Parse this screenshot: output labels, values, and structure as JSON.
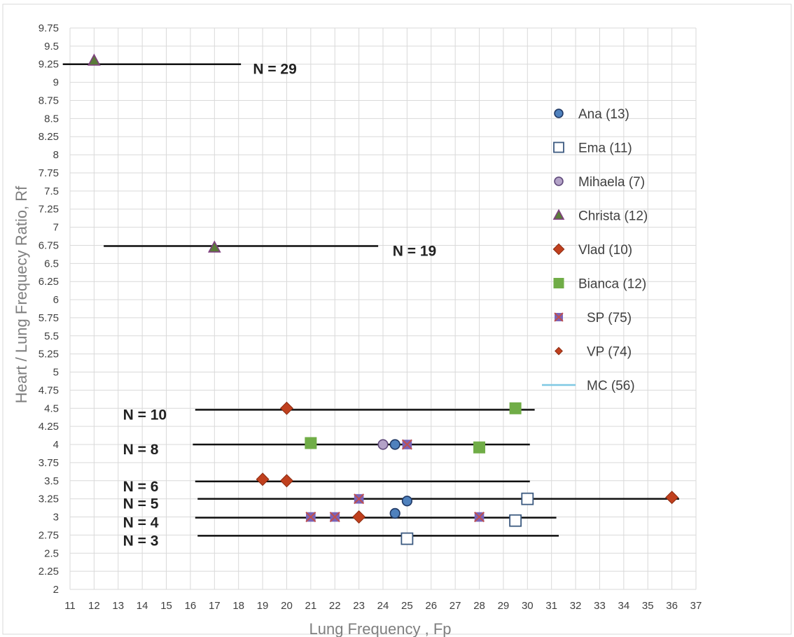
{
  "chart_data": {
    "type": "scatter",
    "title": "",
    "xlabel": "Lung Frequency , Fp",
    "ylabel": "Heart / Lung Frequecy Ratio, Rf",
    "xlim": [
      11,
      37
    ],
    "ylim": [
      2,
      9.75
    ],
    "x_ticks": [
      "11",
      "12",
      "13",
      "14",
      "15",
      "16",
      "17",
      "18",
      "19",
      "20",
      "21",
      "22",
      "23",
      "24",
      "25",
      "26",
      "27",
      "28",
      "29",
      "30",
      "31",
      "32",
      "33",
      "34",
      "35",
      "36",
      "37"
    ],
    "y_ticks": [
      "2",
      "2.25",
      "2.5",
      "2.75",
      "3",
      "3.25",
      "3.5",
      "3.75",
      "4",
      "4.25",
      "4.5",
      "4.75",
      "5",
      "5.25",
      "5.5",
      "5.75",
      "6",
      "6.25",
      "6.5",
      "6.75",
      "7",
      "7.25",
      "7.5",
      "7.75",
      "8",
      "8.25",
      "8.5",
      "8.75",
      "9",
      "9.25",
      "9.5",
      "9.75"
    ],
    "grid": true,
    "legend_position": "right",
    "series": [
      {
        "name": "Ana (13)",
        "marker": "circle",
        "color": "#4f81bd",
        "stroke": "#1f3864",
        "points": [
          [
            24.5,
            4.0
          ],
          [
            25.0,
            3.22
          ],
          [
            24.5,
            3.05
          ]
        ]
      },
      {
        "name": "Ema (11)",
        "marker": "square-open",
        "color": "#ffffff",
        "stroke": "#3c5a80",
        "points": [
          [
            30.0,
            3.25
          ],
          [
            29.5,
            2.95
          ],
          [
            25.0,
            2.7
          ]
        ]
      },
      {
        "name": "Mihaela (7)",
        "marker": "circle",
        "color": "#b3a2c7",
        "stroke": "#604a7b",
        "points": [
          [
            24.0,
            4.0
          ]
        ]
      },
      {
        "name": "Christa (12)",
        "marker": "triangle",
        "color": "#5b7b3a",
        "stroke": "#7f3f7f",
        "points": [
          [
            12.0,
            9.3
          ],
          [
            17.0,
            6.72
          ]
        ]
      },
      {
        "name": "Vlad (10)",
        "marker": "diamond",
        "color": "#c0401e",
        "stroke": "#8a2a10",
        "points": [
          [
            20.0,
            4.5
          ],
          [
            19.0,
            3.52
          ],
          [
            20.0,
            3.5
          ],
          [
            23.0,
            3.0
          ],
          [
            36.0,
            3.27
          ]
        ]
      },
      {
        "name": "Bianca (12)",
        "marker": "square",
        "color": "#70ad47",
        "stroke": "#70ad47",
        "points": [
          [
            21.0,
            4.02
          ],
          [
            29.5,
            4.5
          ],
          [
            28.0,
            3.96
          ]
        ]
      },
      {
        "name": "SP (75)",
        "marker": "star-square",
        "color": "#7a63b8",
        "stroke": "#5b4a8c",
        "points": [
          [
            25.0,
            4.0
          ],
          [
            23.0,
            3.25
          ],
          [
            21.0,
            3.0
          ],
          [
            22.0,
            3.0
          ],
          [
            28.0,
            3.0
          ]
        ]
      },
      {
        "name": "VP (74)",
        "marker": "diamond-small",
        "color": "#c0401e",
        "stroke": "#8a2a10",
        "points": []
      },
      {
        "name": "MC (56)",
        "marker": "line",
        "color": "#7ec8e3",
        "stroke": "#7ec8e3",
        "points": []
      }
    ],
    "hlines": [
      {
        "label": "N = 29",
        "y": 9.25,
        "x_start": 10.7,
        "x_end": 18.1,
        "label_x": 18.6
      },
      {
        "label": "N = 19",
        "y": 6.74,
        "x_start": 12.4,
        "x_end": 23.8,
        "label_x": 24.4
      },
      {
        "label": "N = 10",
        "y": 4.48,
        "x_start": 16.2,
        "x_end": 30.3,
        "label_x": 13.2
      },
      {
        "label": "N = 8",
        "y": 4.0,
        "x_start": 16.1,
        "x_end": 30.1,
        "label_x": 13.2
      },
      {
        "label": "N = 6",
        "y": 3.49,
        "x_start": 16.2,
        "x_end": 30.1,
        "label_x": 13.2
      },
      {
        "label": "N = 5",
        "y": 3.25,
        "x_start": 16.3,
        "x_end": 36.3,
        "label_x": 13.2
      },
      {
        "label": "N = 4",
        "y": 2.99,
        "x_start": 16.2,
        "x_end": 31.2,
        "label_x": 13.2
      },
      {
        "label": "N = 3",
        "y": 2.74,
        "x_start": 16.3,
        "x_end": 31.3,
        "label_x": 13.2
      }
    ]
  }
}
